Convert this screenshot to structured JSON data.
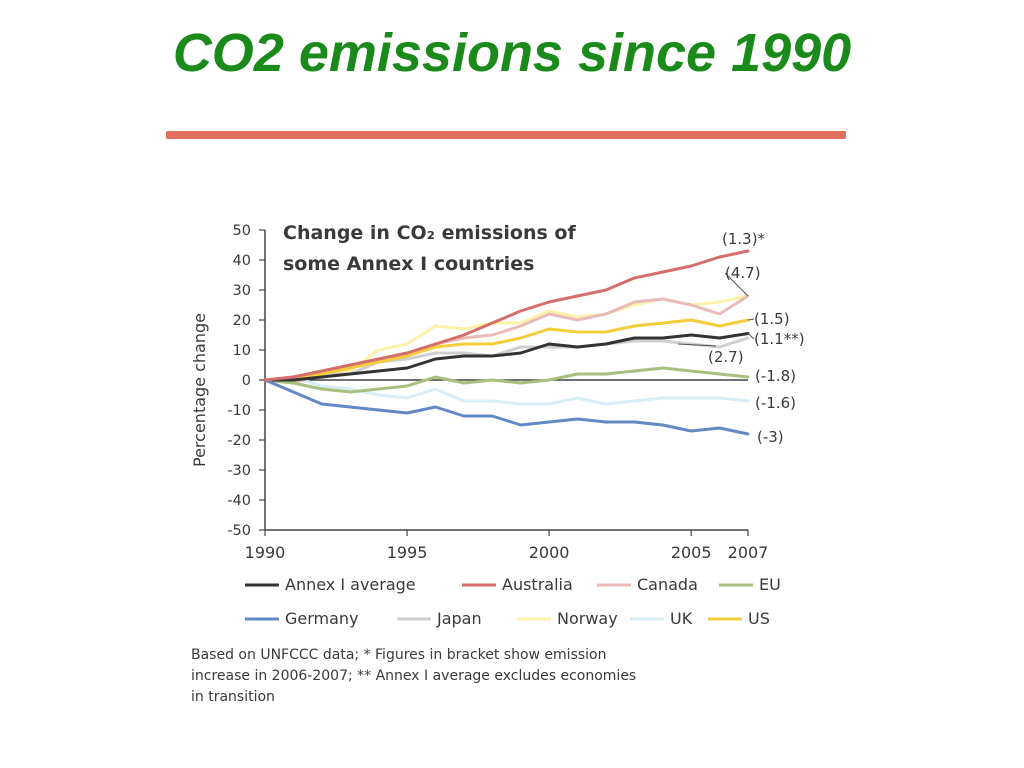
{
  "slide": {
    "title": "CO2 emissions since 1990"
  },
  "chart_data": {
    "type": "line",
    "title": "Change in CO₂ emissions of some Annex I countries",
    "title_lines": [
      "Change in CO₂ emissions of",
      "some Annex I countries"
    ],
    "xlabel": "",
    "ylabel": "Percentage change",
    "xlim": [
      1990,
      2007
    ],
    "ylim": [
      -50,
      50
    ],
    "x_ticks": [
      1990,
      1995,
      2000,
      2005,
      2007
    ],
    "y_ticks": [
      50,
      40,
      30,
      20,
      10,
      0,
      -10,
      -20,
      -30,
      -40,
      -50
    ],
    "x": [
      1990,
      1991,
      1992,
      1993,
      1994,
      1995,
      1996,
      1997,
      1998,
      1999,
      2000,
      2001,
      2002,
      2003,
      2004,
      2005,
      2006,
      2007
    ],
    "series": [
      {
        "name": "Norway",
        "color": "#fbf3a8",
        "label": "",
        "values": [
          0,
          -1,
          2,
          3,
          10,
          12,
          18,
          17,
          19,
          19,
          23,
          21,
          22,
          25,
          27,
          25,
          26,
          28
        ]
      },
      {
        "name": "UK",
        "color": "#d9edf6",
        "label": "(-1.6)",
        "values": [
          0,
          1,
          -2,
          -3,
          -5,
          -6,
          -3,
          -7,
          -7,
          -8,
          -8,
          -6,
          -8,
          -7,
          -6,
          -6,
          -6,
          -7
        ]
      },
      {
        "name": "Japan",
        "color": "#cfcfcf",
        "label": "(2.7)",
        "values": [
          0,
          1,
          2,
          2,
          6,
          7,
          9,
          9,
          8,
          11,
          11,
          11,
          12,
          13,
          13,
          12,
          11,
          14
        ]
      },
      {
        "name": "Canada",
        "color": "#ebbbbb",
        "label": "(4.7)",
        "values": [
          0,
          -1,
          2,
          4,
          7,
          9,
          12,
          14,
          15,
          18,
          22,
          20,
          22,
          26,
          27,
          25,
          22,
          28
        ]
      },
      {
        "name": "EU",
        "color": "#a8bf80",
        "label": "(-1.8)",
        "values": [
          0,
          -1,
          -3,
          -4,
          -3,
          -2,
          1,
          -1,
          0,
          -1,
          0,
          2,
          2,
          3,
          4,
          3,
          2,
          1
        ]
      },
      {
        "name": "US",
        "color": "#f4cd3a",
        "label": "(1.5)",
        "values": [
          0,
          0,
          2,
          4,
          6,
          8,
          11,
          12,
          12,
          14,
          17,
          16,
          16,
          18,
          19,
          20,
          18,
          20
        ]
      },
      {
        "name": "Annex I average",
        "color": "#333333",
        "label": "(1.1**)",
        "values": [
          0,
          0,
          1,
          2,
          3,
          4,
          7,
          8,
          8,
          9,
          12,
          11,
          12,
          14,
          14,
          15,
          14,
          15.5
        ]
      },
      {
        "name": "Germany",
        "color": "#6289c6",
        "label": "(-3)",
        "values": [
          0,
          -4,
          -8,
          -9,
          -10,
          -11,
          -9,
          -12,
          -12,
          -15,
          -14,
          -13,
          -14,
          -14,
          -15,
          -17,
          -16,
          -18
        ]
      },
      {
        "name": "Australia",
        "color": "#d56d6a",
        "label": "(1.3)*",
        "values": [
          0,
          1,
          3,
          5,
          7,
          9,
          12,
          15,
          19,
          23,
          26,
          28,
          30,
          34,
          36,
          38,
          41,
          43
        ]
      }
    ],
    "legend": {
      "placement": "bottom",
      "rows": [
        [
          "Annex I average",
          "Australia",
          "Canada",
          "EU"
        ],
        [
          "Germany",
          "Japan",
          "Norway",
          "UK",
          "US"
        ]
      ]
    },
    "footnote_lines": [
      "Based on UNFCCC data; * Figures in bracket show emission",
      "increase in 2006-2007; ** Annex I average excludes economies",
      "in transition"
    ],
    "grid": false
  }
}
